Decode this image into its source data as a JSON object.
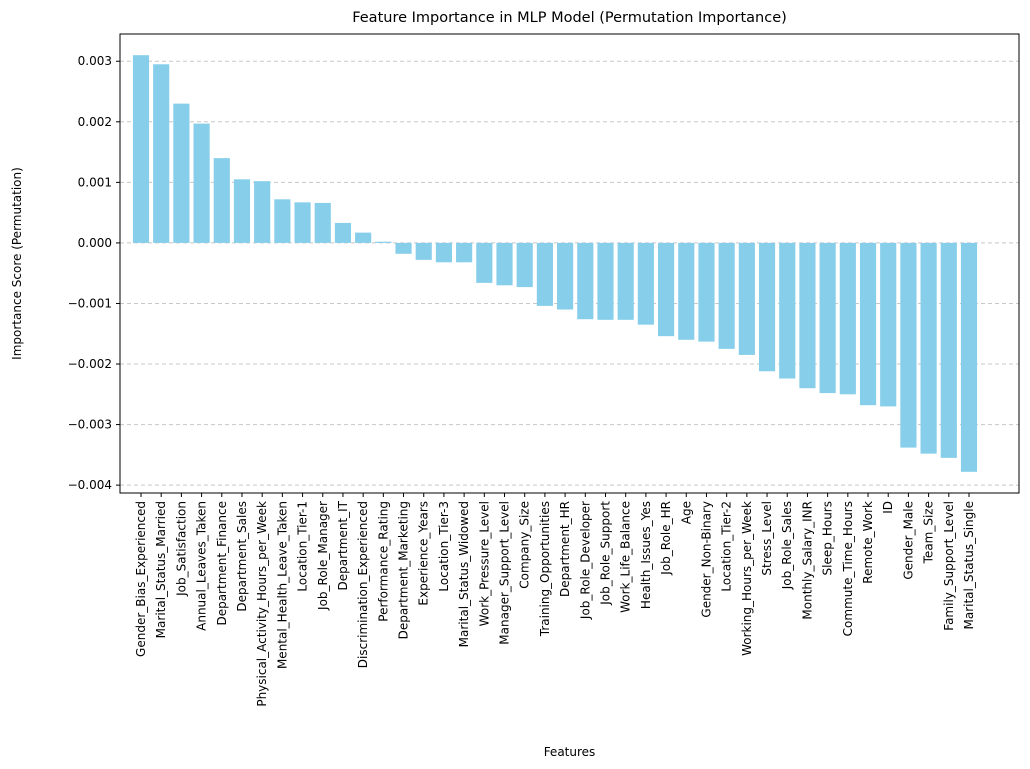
{
  "chart_data": {
    "type": "bar",
    "title": "Feature Importance in MLP Model (Permutation Importance)",
    "xlabel": "Features",
    "ylabel": "Importance Score (Permutation)",
    "ylim": [
      -0.00413,
      0.00345
    ],
    "yticks": [
      0.003,
      0.002,
      0.001,
      0.0,
      -0.001,
      -0.002,
      -0.003,
      -0.004
    ],
    "ytick_labels": [
      "0.003",
      "0.002",
      "0.001",
      "0.000",
      "−0.001",
      "−0.002",
      "−0.003",
      "−0.004"
    ],
    "grid": "y-dashed",
    "bar_color": "#87ceeb",
    "grid_color": "#c8c8c8",
    "categories": [
      "Gender_Bias_Experienced",
      "Marital_Status_Married",
      "Job_Satisfaction",
      "Annual_Leaves_Taken",
      "Department_Finance",
      "Department_Sales",
      "Physical_Activity_Hours_per_Week",
      "Mental_Health_Leave_Taken",
      "Location_Tier-1",
      "Job_Role_Manager",
      "Department_IT",
      "Discrimination_Experienced",
      "Performance_Rating",
      "Department_Marketing",
      "Experience_Years",
      "Location_Tier-3",
      "Marital_Status_Widowed",
      "Work_Pressure_Level",
      "Manager_Support_Level",
      "Company_Size",
      "Training_Opportunities",
      "Department_HR",
      "Job_Role_Developer",
      "Job_Role_Support",
      "Work_Life_Balance",
      "Health_Issues_Yes",
      "Job_Role_HR",
      "Age",
      "Gender_Non-Binary",
      "Location_Tier-2",
      "Working_Hours_per_Week",
      "Stress_Level",
      "Job_Role_Sales",
      "Monthly_Salary_INR",
      "Sleep_Hours",
      "Commute_Time_Hours",
      "Remote_Work",
      "ID",
      "Gender_Male",
      "Team_Size",
      "Family_Support_Level",
      "Marital_Status_Single"
    ],
    "values": [
      0.0031,
      0.00295,
      0.0023,
      0.00197,
      0.0014,
      0.00105,
      0.00102,
      0.00072,
      0.00067,
      0.00066,
      0.00033,
      0.00017,
      2e-05,
      -0.00018,
      -0.00028,
      -0.00032,
      -0.00032,
      -0.00066,
      -0.0007,
      -0.00073,
      -0.00104,
      -0.0011,
      -0.00126,
      -0.00127,
      -0.00127,
      -0.00135,
      -0.00154,
      -0.0016,
      -0.00163,
      -0.00175,
      -0.00185,
      -0.00212,
      -0.00224,
      -0.0024,
      -0.00248,
      -0.0025,
      -0.00268,
      -0.0027,
      -0.00338,
      -0.00348,
      -0.00355,
      -0.00378
    ]
  }
}
